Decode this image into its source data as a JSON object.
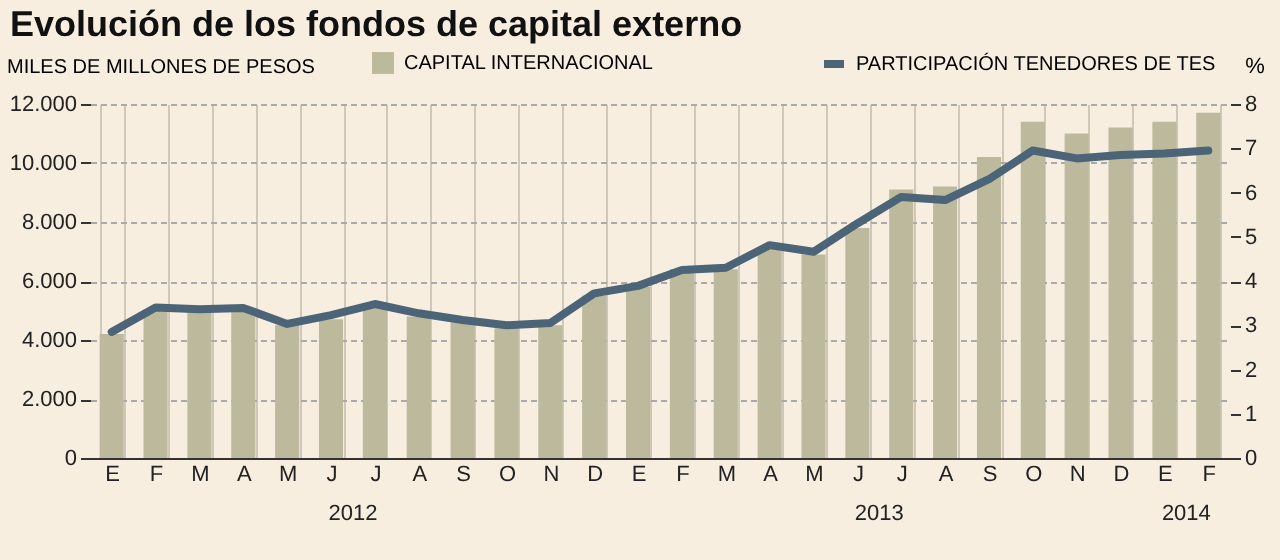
{
  "chart_data": {
    "type": "bar",
    "title": "Evolución de los fondos de capital externo",
    "ylabel": "MILES DE MILLONES DE PESOS",
    "y2label": "%",
    "categories": [
      "E",
      "F",
      "M",
      "A",
      "M",
      "J",
      "J",
      "A",
      "S",
      "O",
      "N",
      "D",
      "E",
      "F",
      "M",
      "A",
      "M",
      "J",
      "J",
      "A",
      "S",
      "O",
      "N",
      "D",
      "E",
      "F"
    ],
    "series": [
      {
        "name": "CAPITAL INTERNACIONAL",
        "color": "#bcb99c",
        "values": [
          4200,
          5000,
          5000,
          5000,
          4500,
          4700,
          5100,
          4800,
          4600,
          4400,
          4500,
          5500,
          5800,
          6400,
          6400,
          7100,
          6900,
          7800,
          9100,
          9200,
          10200,
          11400,
          11000,
          11200,
          11400,
          11700
        ]
      },
      {
        "name": "PARTICIPACIÓN TENEDORES DE TES",
        "type": "line",
        "axis": "y2",
        "color": "#4b6478",
        "values": [
          2.85,
          3.4,
          3.36,
          3.39,
          3.03,
          3.23,
          3.48,
          3.27,
          3.12,
          3.0,
          3.05,
          3.72,
          3.89,
          4.25,
          4.3,
          4.81,
          4.66,
          5.3,
          5.9,
          5.83,
          6.3,
          6.95,
          6.77,
          6.85,
          6.88,
          6.95
        ]
      }
    ],
    "ylim": [
      0,
      12000
    ],
    "yticks": [
      {
        "value": 0,
        "label": "0"
      },
      {
        "value": 2000,
        "label": "2.000"
      },
      {
        "value": 4000,
        "label": "4.000"
      },
      {
        "value": 6000,
        "label": "6.000"
      },
      {
        "value": 8000,
        "label": "8.000"
      },
      {
        "value": 10000,
        "label": "10.000"
      },
      {
        "value": 12000,
        "label": "12.000"
      }
    ],
    "y2lim": [
      0,
      8
    ],
    "y2ticks": [
      0,
      1,
      2,
      3,
      4,
      5,
      6,
      7,
      8
    ],
    "annotations": [
      "2012",
      "2013",
      "2014"
    ],
    "grid": true,
    "legend": "top"
  }
}
